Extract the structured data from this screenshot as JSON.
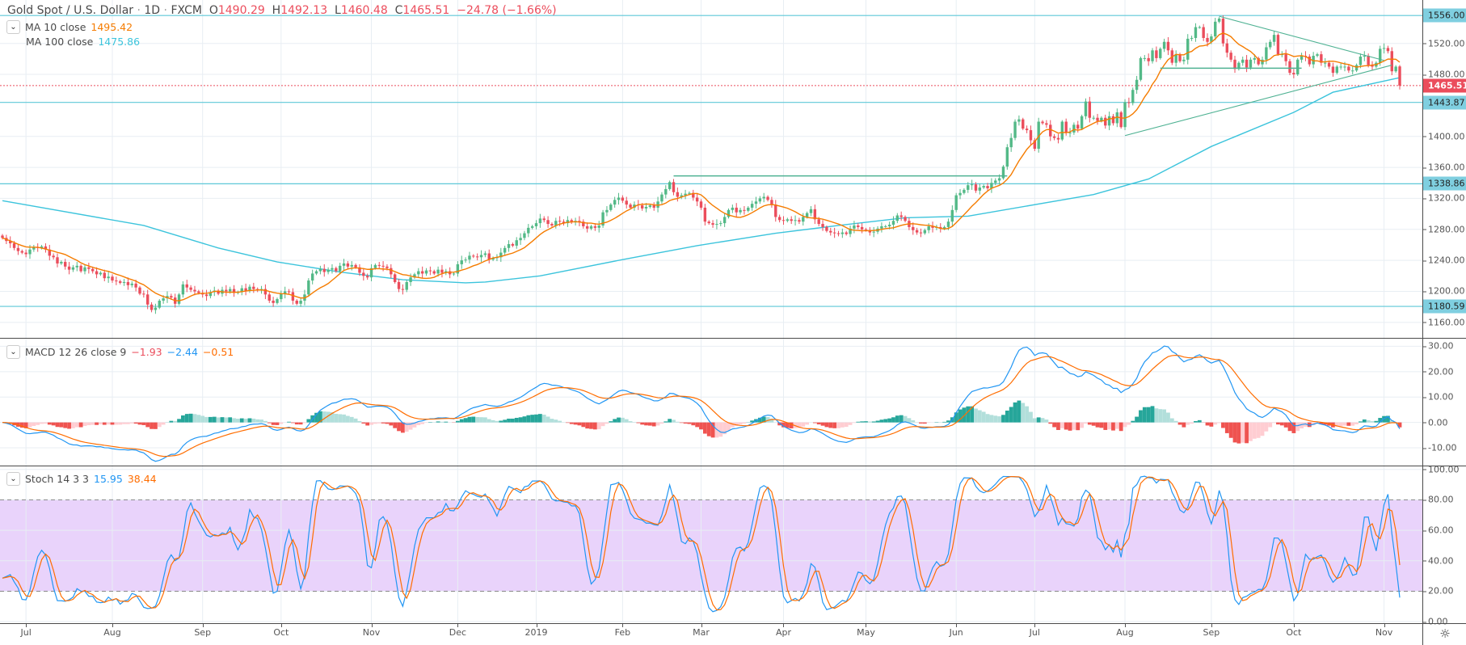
{
  "header": {
    "title": "Gold Spot / U.S. Dollar",
    "interval": "1D",
    "source": "FXCM",
    "separator": "·",
    "o_label": "O",
    "o_value": "1490.29",
    "h_label": "H",
    "h_value": "1492.13",
    "l_label": "L",
    "l_value": "1460.48",
    "c_label": "C",
    "c_value": "1465.51",
    "change": "−24.78 (−1.66%)"
  },
  "indicators": {
    "ma10": {
      "label": "MA 10 close",
      "value": "1495.42",
      "color": "#f57c00"
    },
    "ma100": {
      "label": "MA 100 close",
      "value": "1475.86",
      "color": "#3cc4dc"
    },
    "macd": {
      "label": "MACD 12 26 close 9",
      "hist": "−1.93",
      "macd": "−2.44",
      "signal": "−0.51"
    },
    "stoch": {
      "label": "Stoch 14 3 3",
      "k": "15.95",
      "d": "38.44"
    }
  },
  "colors": {
    "up": "#53b987",
    "down": "#eb4d5c",
    "macd_line": "#2196f3",
    "signal_line": "#ff6d00",
    "hist_up_strong": "#26a69a",
    "hist_up_weak": "#b2dfdb",
    "hist_down_strong": "#ef5350",
    "hist_down_weak": "#ffcdd2",
    "stoch_band": "#e9d3fb",
    "level_line": "#5ec8d8",
    "drawing": "#4fb293"
  },
  "chart_data": {
    "type": "candlestick",
    "symbol": "Gold Spot / U.S. Dollar",
    "first_open": 1272,
    "last_bar": {
      "open": 1490.29,
      "high": 1492.13,
      "low": 1460.48,
      "close": 1465.51
    },
    "closes": [
      1269,
      1265,
      1262,
      1256,
      1252,
      1250,
      1248,
      1254,
      1257,
      1256,
      1258,
      1254,
      1246,
      1244,
      1236,
      1238,
      1232,
      1228,
      1231,
      1233,
      1226,
      1231,
      1229,
      1226,
      1222,
      1224,
      1217,
      1219,
      1214,
      1213,
      1211,
      1212,
      1208,
      1210,
      1205,
      1197,
      1196,
      1183,
      1176,
      1179,
      1188,
      1191,
      1194,
      1192,
      1184,
      1196,
      1209,
      1205,
      1202,
      1200,
      1198,
      1196,
      1194,
      1199,
      1201,
      1197,
      1202,
      1200,
      1203,
      1198,
      1199,
      1204,
      1201,
      1206,
      1203,
      1201,
      1203,
      1196,
      1188,
      1185,
      1190,
      1197,
      1200,
      1199,
      1188,
      1184,
      1188,
      1196,
      1214,
      1223,
      1226,
      1229,
      1225,
      1228,
      1230,
      1226,
      1233,
      1236,
      1232,
      1234,
      1231,
      1224,
      1220,
      1218,
      1230,
      1234,
      1233,
      1232,
      1230,
      1222,
      1212,
      1203,
      1202,
      1212,
      1218,
      1222,
      1226,
      1223,
      1227,
      1226,
      1223,
      1228,
      1224,
      1226,
      1222,
      1223,
      1235,
      1240,
      1241,
      1246,
      1245,
      1244,
      1247,
      1249,
      1241,
      1243,
      1244,
      1250,
      1256,
      1261,
      1259,
      1266,
      1269,
      1275,
      1282,
      1284,
      1288,
      1294,
      1292,
      1287,
      1285,
      1291,
      1290,
      1288,
      1292,
      1289,
      1291,
      1290,
      1284,
      1281,
      1284,
      1282,
      1285,
      1302,
      1305,
      1312,
      1318,
      1321,
      1317,
      1312,
      1308,
      1312,
      1311,
      1307,
      1309,
      1311,
      1308,
      1316,
      1325,
      1332,
      1341,
      1328,
      1322,
      1324,
      1326,
      1327,
      1321,
      1316,
      1308,
      1290,
      1288,
      1286,
      1287,
      1288,
      1296,
      1305,
      1308,
      1302,
      1305,
      1304,
      1308,
      1313,
      1316,
      1320,
      1322,
      1318,
      1312,
      1296,
      1292,
      1291,
      1293,
      1291,
      1292,
      1290,
      1296,
      1301,
      1306,
      1293,
      1287,
      1283,
      1278,
      1276,
      1275,
      1274,
      1276,
      1274,
      1281,
      1285,
      1283,
      1280,
      1279,
      1276,
      1277,
      1281,
      1284,
      1284,
      1286,
      1291,
      1298,
      1296,
      1291,
      1283,
      1279,
      1276,
      1275,
      1279,
      1284,
      1282,
      1283,
      1281,
      1283,
      1290,
      1305,
      1324,
      1327,
      1331,
      1337,
      1338,
      1330,
      1334,
      1336,
      1333,
      1340,
      1343,
      1346,
      1361,
      1386,
      1398,
      1419,
      1422,
      1410,
      1408,
      1395,
      1384,
      1419,
      1417,
      1415,
      1400,
      1398,
      1396,
      1419,
      1405,
      1405,
      1415,
      1410,
      1426,
      1445,
      1424,
      1424,
      1420,
      1424,
      1414,
      1426,
      1417,
      1431,
      1412,
      1444,
      1443,
      1460,
      1473,
      1501,
      1501,
      1497,
      1511,
      1501,
      1513,
      1522,
      1511,
      1495,
      1506,
      1497,
      1499,
      1526,
      1527,
      1541,
      1541,
      1527,
      1522,
      1529,
      1548,
      1552,
      1520,
      1508,
      1499,
      1487,
      1495,
      1499,
      1489,
      1499,
      1501,
      1493,
      1499,
      1515,
      1522,
      1531,
      1506,
      1506,
      1497,
      1482,
      1480,
      1499,
      1504,
      1503,
      1493,
      1504,
      1506,
      1495,
      1495,
      1490,
      1482,
      1490,
      1490,
      1490,
      1485,
      1485,
      1492,
      1503,
      1504,
      1492,
      1490,
      1495,
      1513,
      1514,
      1510,
      1484,
      1490,
      1465.51
    ],
    "ma100_points": [
      [
        0,
        1317
      ],
      [
        36,
        1285
      ],
      [
        55,
        1256
      ],
      [
        70,
        1238
      ],
      [
        86,
        1225
      ],
      [
        102,
        1215
      ],
      [
        118,
        1211
      ],
      [
        123,
        1212
      ],
      [
        137,
        1220
      ],
      [
        158,
        1241
      ],
      [
        177,
        1259
      ],
      [
        197,
        1275
      ],
      [
        213,
        1285
      ],
      [
        230,
        1295
      ],
      [
        246,
        1297
      ],
      [
        278,
        1325
      ],
      [
        292,
        1345
      ],
      [
        308,
        1387
      ],
      [
        329,
        1431
      ],
      [
        339,
        1457
      ],
      [
        356,
        1475.86
      ]
    ],
    "price_axis": {
      "range": [
        1140,
        1576
      ],
      "ticks": [
        "1160.00",
        "1200.00",
        "1240.00",
        "1280.00",
        "1320.00",
        "1360.00",
        "1400.00",
        "1480.00",
        "1520.00"
      ]
    },
    "macd_axis": {
      "range": [
        -17,
        33
      ],
      "ticks": [
        "-10.00",
        "0.00",
        "10.00",
        "20.00",
        "30.00"
      ]
    },
    "stoch_axis": {
      "range": [
        -1,
        102
      ],
      "ticks": [
        "0.00",
        "20.00",
        "40.00",
        "60.00",
        "80.00",
        "100.00"
      ],
      "band": [
        20,
        80
      ]
    },
    "levels": [
      {
        "price": 1556.0,
        "label": "1556.00"
      },
      {
        "price": 1443.87,
        "label": "1443.87"
      },
      {
        "price": 1338.86,
        "label": "1338.86"
      },
      {
        "price": 1180.59,
        "label": "1180.59"
      }
    ],
    "last_price": {
      "price": 1465.51,
      "label": "1465.51"
    },
    "drawings": [
      {
        "type": "hline",
        "from": [
          171,
          1349
        ],
        "to": [
          256,
          1349
        ]
      },
      {
        "type": "hline",
        "from": [
          295,
          1488
        ],
        "to": [
          331,
          1488
        ]
      },
      {
        "type": "trend",
        "from": [
          286,
          1401
        ],
        "to": [
          354,
          1492
        ]
      },
      {
        "type": "trend",
        "from": [
          310,
          1555
        ],
        "to": [
          352,
          1498
        ]
      }
    ],
    "time_axis": [
      {
        "label": "Jul",
        "bar": 6
      },
      {
        "label": "Aug",
        "bar": 28
      },
      {
        "label": "Sep",
        "bar": 51
      },
      {
        "label": "Oct",
        "bar": 71
      },
      {
        "label": "Nov",
        "bar": 94
      },
      {
        "label": "Dec",
        "bar": 116
      },
      {
        "label": "2019",
        "bar": 136
      },
      {
        "label": "Feb",
        "bar": 158
      },
      {
        "label": "Mar",
        "bar": 178
      },
      {
        "label": "Apr",
        "bar": 199
      },
      {
        "label": "May",
        "bar": 220
      },
      {
        "label": "Jun",
        "bar": 243
      },
      {
        "label": "Jul",
        "bar": 263
      },
      {
        "label": "Aug",
        "bar": 286
      },
      {
        "label": "Sep",
        "bar": 308
      },
      {
        "label": "Oct",
        "bar": 329
      },
      {
        "label": "Nov",
        "bar": 352
      }
    ]
  },
  "settings_icon": "gear-icon",
  "collapse_icon": "chevron-down-icon"
}
